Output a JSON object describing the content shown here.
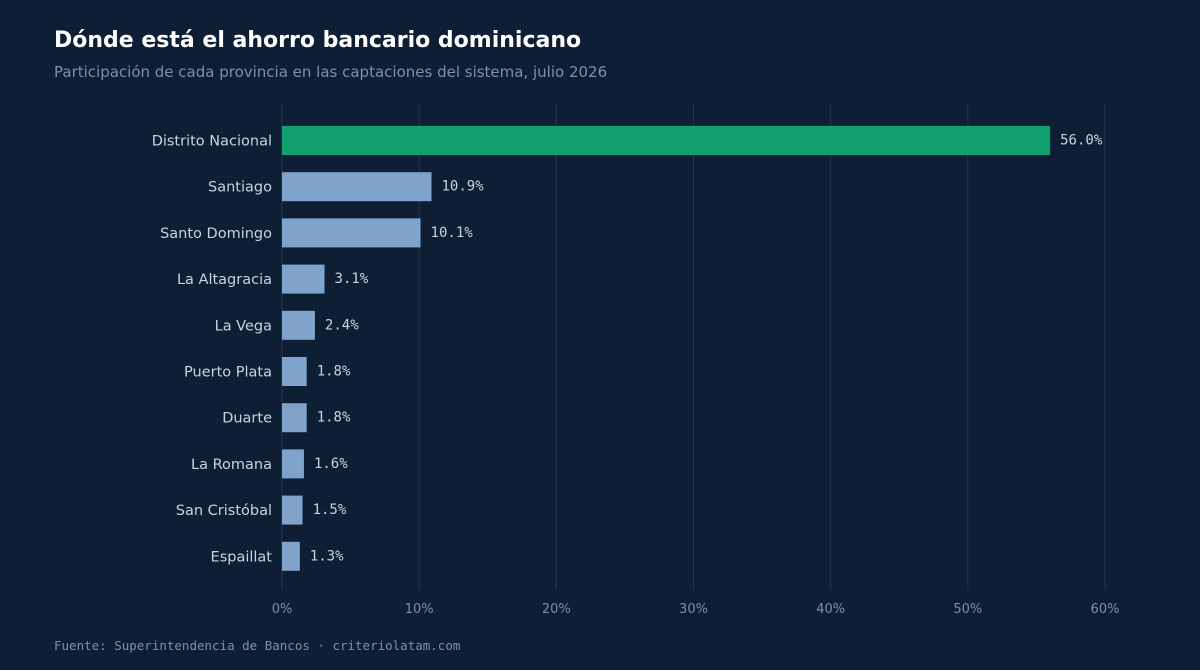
{
  "header": {
    "title": "Dónde está el ahorro bancario dominicano",
    "subtitle": "Participación de cada provincia en las captaciones del sistema, julio 2026"
  },
  "footer": {
    "source": "Fuente: Superintendencia de Bancos · criteriolatam.com"
  },
  "colors": {
    "background": "#0e1f35",
    "highlight_bar": "#11a06f",
    "default_bar": "#7fa3cb",
    "grid": "#243650",
    "title": "#ffffff",
    "muted_text": "#7e8fa6",
    "label_text": "#c9d3df"
  },
  "chart_data": {
    "type": "bar",
    "orientation": "horizontal",
    "categories": [
      "Distrito Nacional",
      "Santiago",
      "Santo Domingo",
      "La Altagracia",
      "La Vega",
      "Puerto Plata",
      "Duarte",
      "La Romana",
      "San Cristóbal",
      "Espaillat"
    ],
    "values": [
      56.0,
      10.9,
      10.1,
      3.1,
      2.4,
      1.8,
      1.8,
      1.6,
      1.5,
      1.3
    ],
    "value_labels": [
      "56.0%",
      "10.9%",
      "10.1%",
      "3.1%",
      "2.4%",
      "1.8%",
      "1.8%",
      "1.6%",
      "1.5%",
      "1.3%"
    ],
    "highlight_index": 0,
    "xlim": [
      0,
      60
    ],
    "xticks": [
      0,
      10,
      20,
      30,
      40,
      50,
      60
    ],
    "xtick_labels": [
      "0%",
      "10%",
      "20%",
      "30%",
      "40%",
      "50%",
      "60%"
    ],
    "grid": "vertical",
    "legend": "none"
  }
}
